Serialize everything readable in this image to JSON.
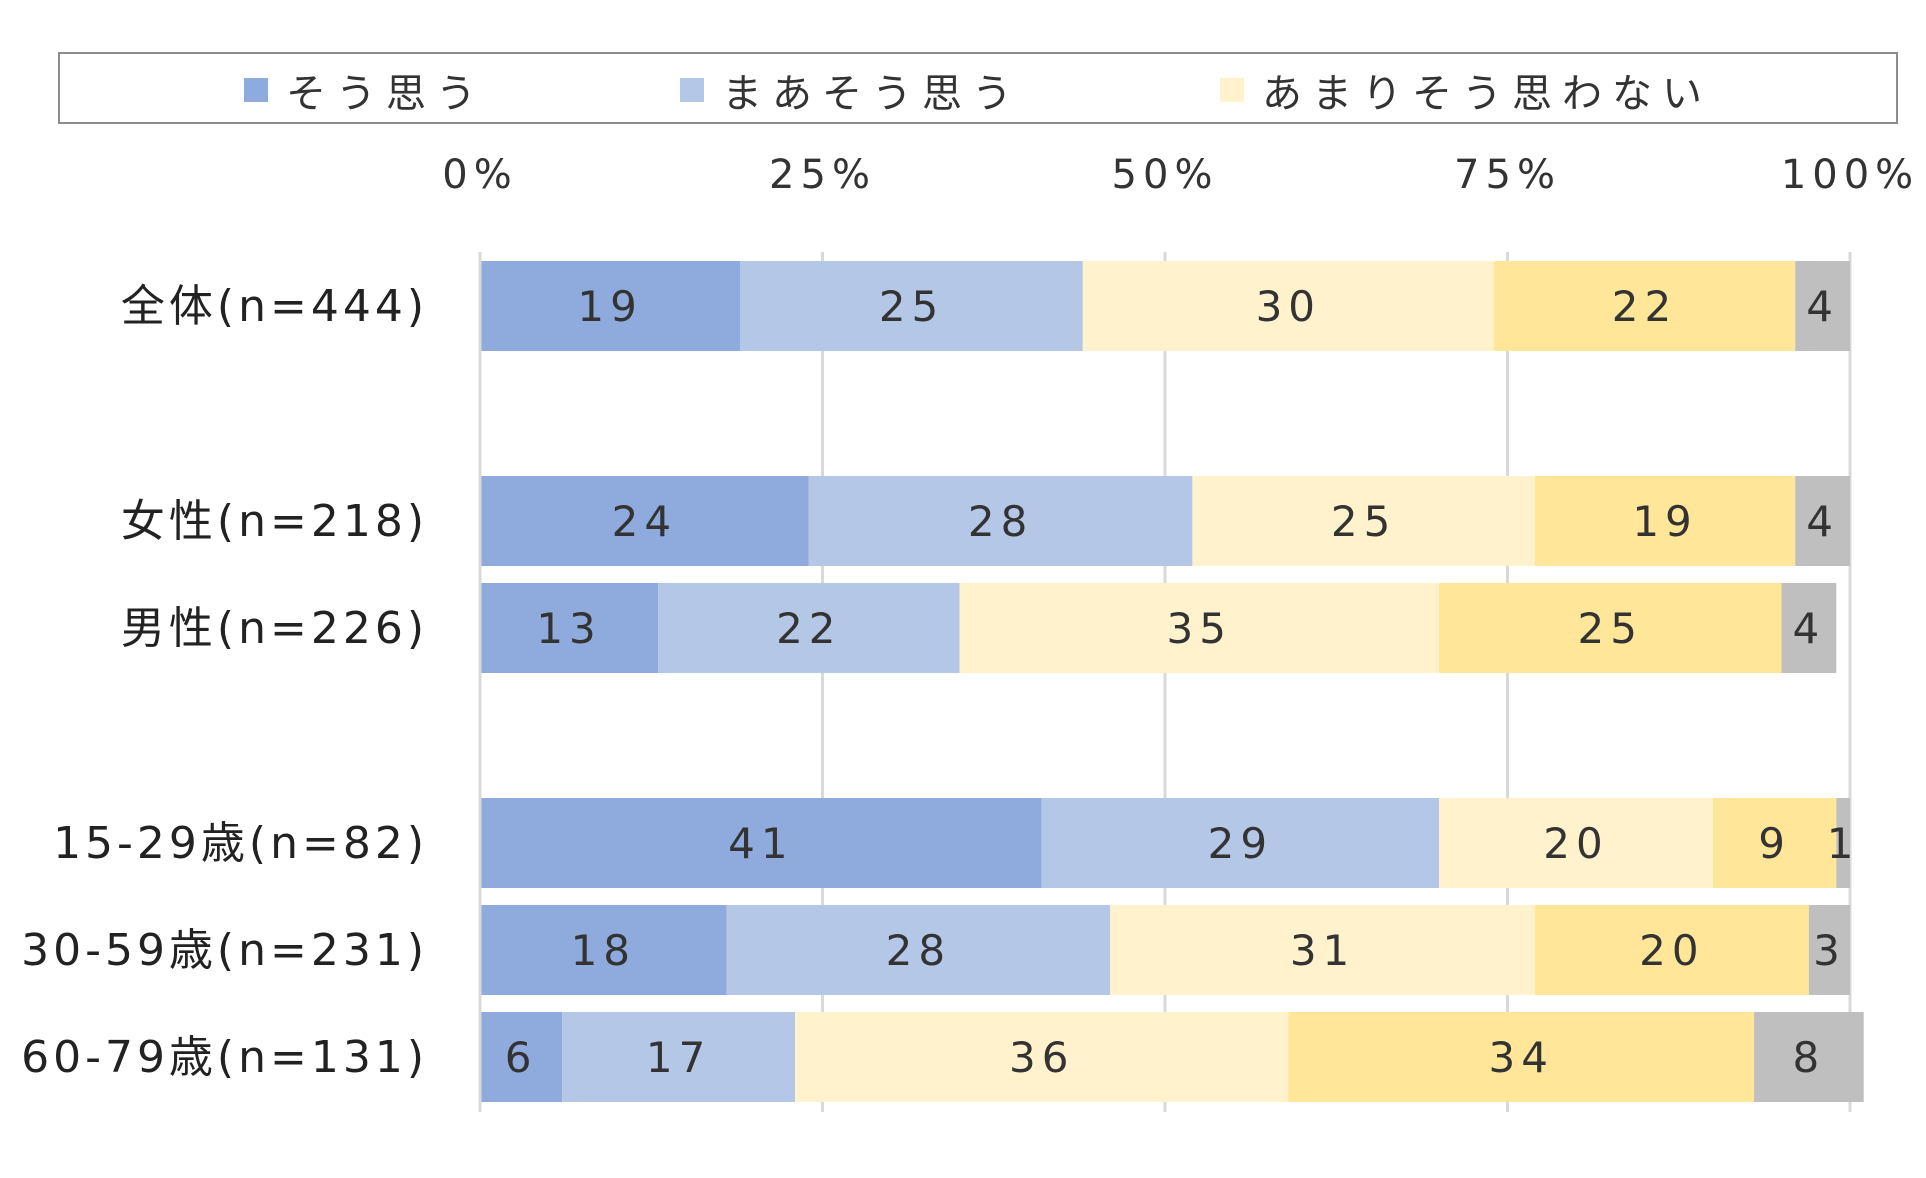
{
  "chart_data": {
    "type": "bar",
    "orientation": "horizontal",
    "stacked": "percent",
    "title": "",
    "xlabel": "",
    "ylabel": "",
    "xlim": [
      0,
      100
    ],
    "x_ticks": [
      "0%",
      "25%",
      "50%",
      "75%",
      "100%"
    ],
    "grid": true,
    "legend_position": "top",
    "categories": [
      "全体(n=444)",
      "女性(n=218)",
      "男性(n=226)",
      "15-29歳(n=82)",
      "30-59歳(n=231)",
      "60-79歳(n=131)"
    ],
    "category_groups": [
      [
        0
      ],
      [
        1,
        2
      ],
      [
        3,
        4,
        5
      ]
    ],
    "series": [
      {
        "name": "そう思う",
        "color": "#8faadc",
        "values": [
          19,
          24,
          13,
          41,
          18,
          6
        ]
      },
      {
        "name": "まあそう思う",
        "color": "#b4c7e7",
        "values": [
          25,
          28,
          22,
          29,
          28,
          17
        ]
      },
      {
        "name": "あまりそう思わない",
        "color": "#fff2cc",
        "values": [
          30,
          25,
          35,
          20,
          31,
          36
        ]
      },
      {
        "name": "",
        "color": "#ffe699",
        "values": [
          22,
          19,
          25,
          9,
          20,
          34
        ]
      },
      {
        "name": "",
        "color": "#bfbfbf",
        "values": [
          4,
          4,
          4,
          1,
          3,
          8
        ]
      }
    ],
    "legend_entries": [
      "そう思う",
      "まあそう思う",
      "あまりそう思わない"
    ]
  }
}
